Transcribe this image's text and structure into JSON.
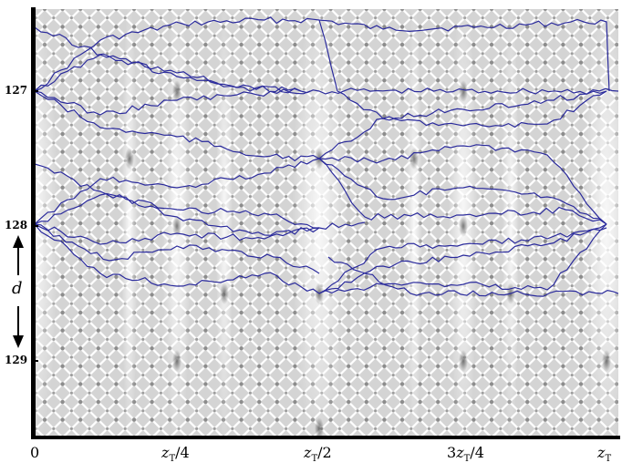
{
  "figure": {
    "y_labels": [
      "127",
      "128",
      "129"
    ],
    "x_labels": [
      {
        "prefix": "",
        "var": "",
        "sub": "",
        "suffix": "0"
      },
      {
        "prefix": "",
        "var": "z",
        "sub": "T",
        "suffix": "/4"
      },
      {
        "prefix": "",
        "var": "z",
        "sub": "T",
        "suffix": "/2"
      },
      {
        "prefix": "3",
        "var": "z",
        "sub": "T",
        "suffix": "/4"
      },
      {
        "prefix": "",
        "var": "z",
        "sub": "T",
        "suffix": ""
      }
    ],
    "spacing_label": "d",
    "colors": {
      "trajectory": "#2a2a9c",
      "frame": "#000000",
      "background_light": "#ffffff",
      "background_dark": "#333333"
    }
  }
}
